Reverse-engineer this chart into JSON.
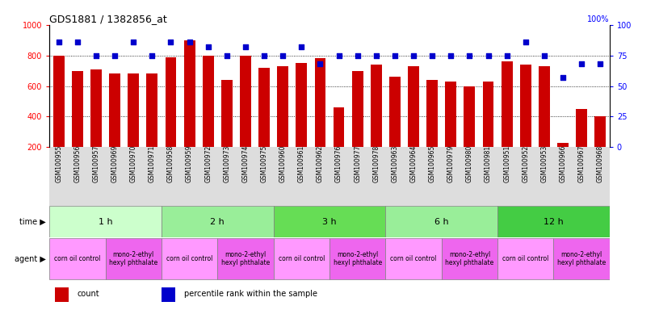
{
  "title": "GDS1881 / 1382856_at",
  "samples": [
    "GSM100955",
    "GSM100956",
    "GSM100957",
    "GSM100969",
    "GSM100970",
    "GSM100971",
    "GSM100958",
    "GSM100959",
    "GSM100972",
    "GSM100973",
    "GSM100974",
    "GSM100975",
    "GSM100960",
    "GSM100961",
    "GSM100962",
    "GSM100976",
    "GSM100977",
    "GSM100978",
    "GSM100963",
    "GSM100964",
    "GSM100965",
    "GSM100979",
    "GSM100980",
    "GSM100981",
    "GSM100951",
    "GSM100952",
    "GSM100953",
    "GSM100966",
    "GSM100967",
    "GSM100968"
  ],
  "counts": [
    800,
    700,
    710,
    680,
    680,
    680,
    790,
    900,
    800,
    640,
    800,
    720,
    730,
    750,
    780,
    460,
    700,
    740,
    660,
    730,
    640,
    630,
    600,
    630,
    760,
    740,
    730,
    230,
    450,
    400
  ],
  "percentiles": [
    86,
    86,
    75,
    75,
    86,
    75,
    86,
    86,
    82,
    75,
    82,
    75,
    75,
    82,
    68,
    75,
    75,
    75,
    75,
    75,
    75,
    75,
    75,
    75,
    75,
    86,
    75,
    57,
    68,
    68
  ],
  "bar_color": "#cc0000",
  "dot_color": "#0000cc",
  "ylim_left": [
    200,
    1000
  ],
  "ylim_right": [
    0,
    100
  ],
  "yticks_left": [
    200,
    400,
    600,
    800,
    1000
  ],
  "yticks_right": [
    0,
    25,
    50,
    75,
    100
  ],
  "grid_values": [
    400,
    600,
    800
  ],
  "time_groups": [
    {
      "label": "1 h",
      "start": 0,
      "end": 6,
      "color": "#ccffcc"
    },
    {
      "label": "2 h",
      "start": 6,
      "end": 12,
      "color": "#99ee99"
    },
    {
      "label": "3 h",
      "start": 12,
      "end": 18,
      "color": "#66dd55"
    },
    {
      "label": "6 h",
      "start": 18,
      "end": 24,
      "color": "#99ee99"
    },
    {
      "label": "12 h",
      "start": 24,
      "end": 30,
      "color": "#44cc44"
    }
  ],
  "agent_groups": [
    {
      "label": "corn oil control",
      "start": 0,
      "end": 3,
      "color": "#ff99ff"
    },
    {
      "label": "mono-2-ethyl\nhexyl phthalate",
      "start": 3,
      "end": 6,
      "color": "#ee66ee"
    },
    {
      "label": "corn oil control",
      "start": 6,
      "end": 9,
      "color": "#ff99ff"
    },
    {
      "label": "mono-2-ethyl\nhexyl phthalate",
      "start": 9,
      "end": 12,
      "color": "#ee66ee"
    },
    {
      "label": "corn oil control",
      "start": 12,
      "end": 15,
      "color": "#ff99ff"
    },
    {
      "label": "mono-2-ethyl\nhexyl phthalate",
      "start": 15,
      "end": 18,
      "color": "#ee66ee"
    },
    {
      "label": "corn oil control",
      "start": 18,
      "end": 21,
      "color": "#ff99ff"
    },
    {
      "label": "mono-2-ethyl\nhexyl phthalate",
      "start": 21,
      "end": 24,
      "color": "#ee66ee"
    },
    {
      "label": "corn oil control",
      "start": 24,
      "end": 27,
      "color": "#ff99ff"
    },
    {
      "label": "mono-2-ethyl\nhexyl phthalate",
      "start": 27,
      "end": 30,
      "color": "#ee66ee"
    }
  ],
  "legend_items": [
    {
      "label": "count",
      "color": "#cc0000"
    },
    {
      "label": "percentile rank within the sample",
      "color": "#0000cc"
    }
  ],
  "bg_xtick": "#dddddd"
}
